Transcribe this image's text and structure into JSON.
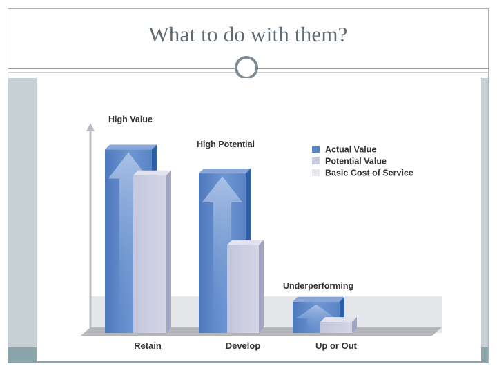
{
  "slide": {
    "title": "What to do with them?"
  },
  "chart_data": {
    "type": "bar",
    "categories": [
      "Retain",
      "Develop",
      "Up or Out"
    ],
    "series": [
      {
        "name": "Actual Value",
        "values": [
          100,
          87,
          17
        ],
        "color": "#5b86c6"
      },
      {
        "name": "Potential Value",
        "values": [
          86,
          48,
          6
        ],
        "color": "#c8cade"
      },
      {
        "name": "Basic Cost of Service",
        "values": [
          20,
          20,
          20
        ],
        "color": "#e6e7ea"
      }
    ],
    "annotations": [
      "High Value",
      "High Potential",
      "Underperforming"
    ],
    "ylim": [
      0,
      110
    ],
    "legend": "top-right",
    "grid": false
  }
}
